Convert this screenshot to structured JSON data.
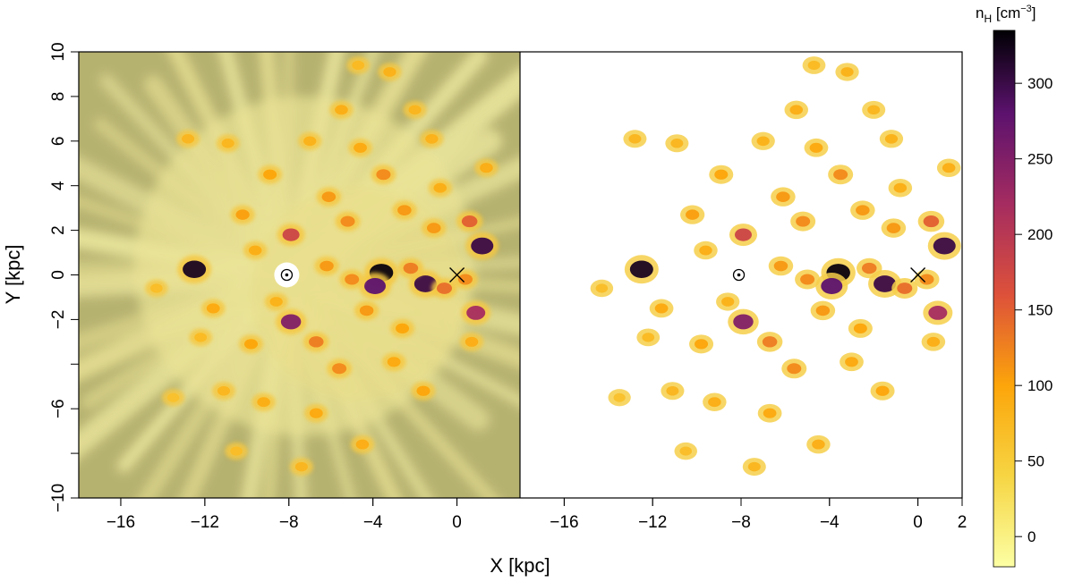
{
  "chart_data": {
    "type": "heatmap",
    "xlabel": "X [kpc]",
    "ylabel": "Y [kpc]",
    "panels": [
      {
        "name": "left",
        "xlim": [
          -18,
          3
        ],
        "ylim": [
          -10,
          10
        ],
        "x_ticks": [
          "-16",
          "-12",
          "-8",
          "-4",
          "0"
        ],
        "y_ticks": [
          "10",
          "8",
          "6",
          "4",
          "2",
          "0",
          "-2",
          "-6",
          "-10"
        ],
        "background": "#b5b16f",
        "markers": [
          {
            "symbol": "sun",
            "x": -8.1,
            "y": 0
          },
          {
            "symbol": "x",
            "x": 0,
            "y": 0
          }
        ]
      },
      {
        "name": "right",
        "xlim": [
          -18,
          2
        ],
        "ylim": [
          -10,
          10
        ],
        "x_ticks": [
          "-16",
          "-12",
          "-8",
          "-4",
          "0",
          "2"
        ],
        "markers": [
          {
            "symbol": "sun",
            "x": -8.1,
            "y": 0
          },
          {
            "symbol": "x",
            "x": 0,
            "y": 0
          }
        ]
      }
    ],
    "clouds": [
      {
        "x": -12.5,
        "y": 0.25,
        "v": 320
      },
      {
        "x": -7.9,
        "y": -2.1,
        "v": 250
      },
      {
        "x": -3.6,
        "y": 0.1,
        "v": 330
      },
      {
        "x": -3.9,
        "y": -0.5,
        "v": 280
      },
      {
        "x": -1.5,
        "y": -0.4,
        "v": 300
      },
      {
        "x": 1.2,
        "y": 1.3,
        "v": 300
      },
      {
        "x": 0.9,
        "y": -1.7,
        "v": 220
      },
      {
        "x": -7.9,
        "y": 1.8,
        "v": 180
      },
      {
        "x": -5.2,
        "y": 2.4,
        "v": 120
      },
      {
        "x": -2.5,
        "y": 2.9,
        "v": 110
      },
      {
        "x": -3.5,
        "y": 4.5,
        "v": 120
      },
      {
        "x": -6.1,
        "y": 3.5,
        "v": 110
      },
      {
        "x": -8.9,
        "y": 4.5,
        "v": 100
      },
      {
        "x": -10.2,
        "y": 2.7,
        "v": 105
      },
      {
        "x": -11.6,
        "y": -1.5,
        "v": 95
      },
      {
        "x": -9.8,
        "y": -3.1,
        "v": 100
      },
      {
        "x": -6.7,
        "y": -3.0,
        "v": 130
      },
      {
        "x": -5.6,
        "y": -4.2,
        "v": 120
      },
      {
        "x": -4.3,
        "y": -1.6,
        "v": 110
      },
      {
        "x": -1.6,
        "y": -5.2,
        "v": 100
      },
      {
        "x": 1.4,
        "y": 4.8,
        "v": 90
      },
      {
        "x": 0.6,
        "y": 2.4,
        "v": 150
      },
      {
        "x": -1.1,
        "y": 2.1,
        "v": 110
      },
      {
        "x": -5.5,
        "y": 7.4,
        "v": 90
      },
      {
        "x": -3.2,
        "y": 9.1,
        "v": 85
      },
      {
        "x": -6.7,
        "y": -6.2,
        "v": 95
      },
      {
        "x": -4.5,
        "y": -7.6,
        "v": 90
      },
      {
        "x": -7.4,
        "y": -8.6,
        "v": 80
      },
      {
        "x": -9.2,
        "y": -5.7,
        "v": 90
      },
      {
        "x": -11.1,
        "y": -5.2,
        "v": 80
      },
      {
        "x": -12.8,
        "y": 6.1,
        "v": 80
      },
      {
        "x": -10.9,
        "y": 5.9,
        "v": 80
      },
      {
        "x": -2.6,
        "y": -2.4,
        "v": 100
      },
      {
        "x": -0.6,
        "y": -0.6,
        "v": 140
      },
      {
        "x": 0.4,
        "y": -0.2,
        "v": 120
      },
      {
        "x": -6.2,
        "y": 0.4,
        "v": 110
      },
      {
        "x": -5.0,
        "y": -0.2,
        "v": 120
      },
      {
        "x": -2.2,
        "y": 0.3,
        "v": 130
      },
      {
        "x": -9.6,
        "y": 1.1,
        "v": 90
      },
      {
        "x": -8.6,
        "y": -1.2,
        "v": 85
      },
      {
        "x": -12.2,
        "y": -2.8,
        "v": 75
      },
      {
        "x": -14.3,
        "y": -0.6,
        "v": 70
      },
      {
        "x": -7.0,
        "y": 6.0,
        "v": 85
      },
      {
        "x": -4.6,
        "y": 5.7,
        "v": 95
      },
      {
        "x": -1.2,
        "y": 6.1,
        "v": 85
      },
      {
        "x": 0.7,
        "y": -3.0,
        "v": 90
      },
      {
        "x": -3.0,
        "y": -3.9,
        "v": 95
      },
      {
        "x": -0.8,
        "y": 3.9,
        "v": 90
      },
      {
        "x": -2.0,
        "y": 7.4,
        "v": 80
      },
      {
        "x": -10.5,
        "y": -7.9,
        "v": 70
      },
      {
        "x": -4.7,
        "y": 9.4,
        "v": 75
      },
      {
        "x": -13.5,
        "y": -5.5,
        "v": 65
      }
    ],
    "colorbar": {
      "title": "n",
      "title_sub": "H",
      "title_unit": "[cm",
      "title_sup": "−3",
      "title_close": "]",
      "range": [
        -20,
        335
      ],
      "ticks": [
        0,
        50,
        100,
        150,
        200,
        250,
        300
      ],
      "tick_labels": [
        "0",
        "50",
        "100",
        "150",
        "200",
        "250",
        "300"
      ],
      "stops": [
        {
          "v": -20,
          "color": "#fcffa4"
        },
        {
          "v": 40,
          "color": "#f6d543"
        },
        {
          "v": 100,
          "color": "#fca50a"
        },
        {
          "v": 160,
          "color": "#dd513a"
        },
        {
          "v": 220,
          "color": "#a52c60"
        },
        {
          "v": 280,
          "color": "#5c126e"
        },
        {
          "v": 335,
          "color": "#000004"
        }
      ]
    }
  }
}
